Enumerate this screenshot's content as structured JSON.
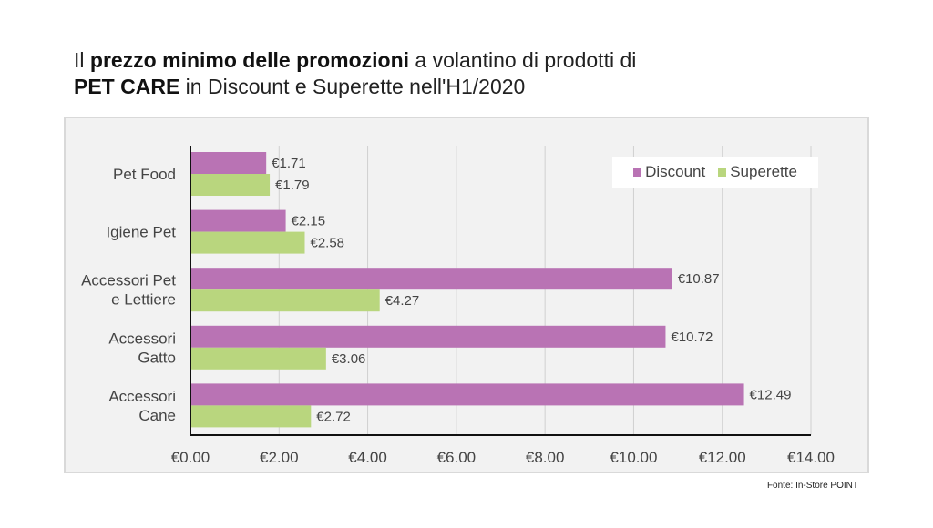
{
  "title": {
    "line1_pre": "Il ",
    "line1_bold": "prezzo minimo delle promozioni",
    "line1_post": " a volantino di prodotti di",
    "line2_bold": "PET CARE",
    "line2_post": " in Discount e Superette nell'H1/2020"
  },
  "source": "Fonte: In-Store POINT",
  "colors": {
    "discount": "#b973b4",
    "superette": "#b9d67e"
  },
  "chart_data": {
    "type": "bar",
    "orientation": "horizontal",
    "categories": [
      [
        "Pet Food"
      ],
      [
        "Igiene Pet"
      ],
      [
        "Accessori Pet",
        "e Lettiere"
      ],
      [
        "Accessori",
        "Gatto"
      ],
      [
        "Accessori",
        "Cane"
      ]
    ],
    "series": [
      {
        "name": "Discount",
        "values": [
          1.71,
          2.15,
          10.87,
          10.72,
          12.49
        ],
        "labels": [
          "€1.71",
          "€2.15",
          "€10.87",
          "€10.72",
          "€12.49"
        ]
      },
      {
        "name": "Superette",
        "values": [
          1.79,
          2.58,
          4.27,
          3.06,
          2.72
        ],
        "labels": [
          "€1.79",
          "€2.58",
          "€4.27",
          "€3.06",
          "€2.72"
        ]
      }
    ],
    "xlim": [
      0,
      14
    ],
    "xticks": [
      0,
      2,
      4,
      6,
      8,
      10,
      12,
      14
    ],
    "xtick_labels": [
      "€0.00",
      "€2.00",
      "€4.00",
      "€6.00",
      "€8.00",
      "€10.00",
      "€12.00",
      "€14.00"
    ],
    "grid": true,
    "legend": "top-right"
  }
}
